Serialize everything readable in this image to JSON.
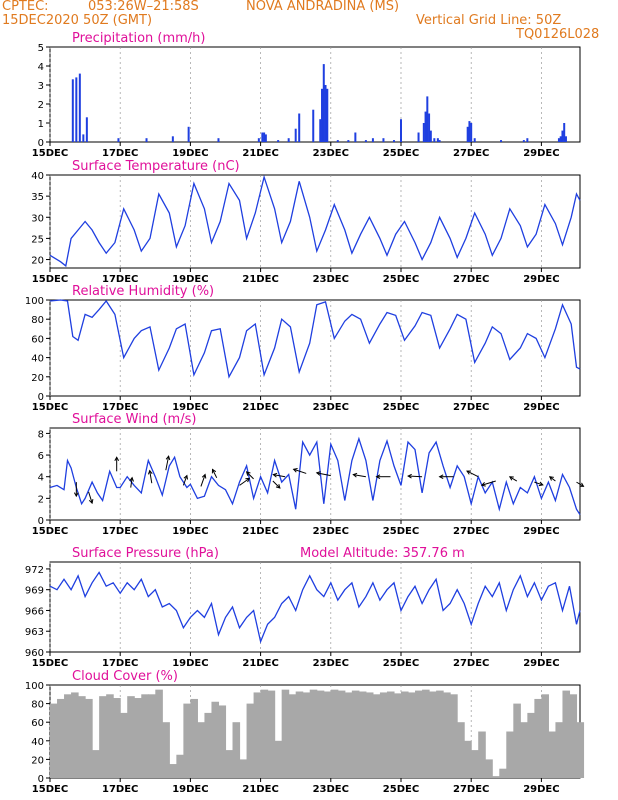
{
  "header": {
    "line1_left": "CPTEC:",
    "line1_coords": "053:26W–21:58S",
    "line1_station": "NOVA ANDRADINA (MS)",
    "line2_left": "15DEC2020 50Z (GMT)",
    "line2_right": "Vertical Grid Line: 50Z",
    "line3_right": "TQ0126L028",
    "model_altitude": "Model Altitude: 357.76 m"
  },
  "colors": {
    "header": "#e07a1f",
    "panel_title": "#e0109a",
    "series": "#1f3fe0",
    "cloud": "#a8a8a8",
    "wind_arrow": "#000000"
  },
  "x_ticks": [
    "15DEC",
    "17DEC",
    "19DEC",
    "21DEC",
    "23DEC",
    "25DEC",
    "27DEC",
    "29DEC"
  ],
  "x_tick_days": [
    15,
    17,
    19,
    21,
    23,
    25,
    27,
    29
  ],
  "x_range_days": [
    15,
    30.1
  ],
  "chart_data": [
    {
      "type": "bar",
      "title": "Precipitation (mm/h)",
      "ylim": [
        0,
        5
      ],
      "yticks": [
        0,
        1,
        2,
        3,
        4,
        5
      ],
      "series": [
        {
          "x": [
            15.65,
            15.75,
            15.85,
            15.95,
            16.05,
            16.95,
            17.75,
            18.5,
            18.95,
            19.8,
            20.95,
            21.05,
            21.1,
            21.15,
            21.5,
            21.8,
            22.0,
            22.1,
            22.5,
            22.7,
            22.75,
            22.8,
            22.85,
            22.9,
            23.2,
            23.5,
            23.7,
            24.0,
            24.2,
            24.5,
            24.8,
            25.0,
            25.5,
            25.65,
            25.7,
            25.75,
            25.8,
            25.85,
            25.95,
            26.05,
            26.1,
            26.9,
            26.95,
            27.0,
            27.1,
            27.85,
            28.5,
            28.6,
            29.5,
            29.55,
            29.6,
            29.65,
            29.7
          ],
          "values": [
            3.3,
            3.4,
            3.6,
            0.4,
            1.3,
            0.2,
            0.2,
            0.3,
            0.8,
            0.2,
            0.2,
            0.5,
            0.5,
            0.4,
            0.1,
            0.2,
            0.7,
            1.5,
            1.7,
            1.2,
            2.8,
            4.1,
            3.0,
            2.8,
            0.1,
            0.1,
            0.5,
            0.1,
            0.2,
            0.2,
            0.1,
            1.2,
            0.5,
            1.0,
            1.6,
            2.4,
            1.5,
            0.6,
            0.2,
            0.2,
            0.1,
            0.8,
            1.1,
            1.0,
            0.2,
            0.1,
            0.1,
            0.2,
            0.2,
            0.3,
            0.6,
            1.0,
            0.3
          ]
        }
      ]
    },
    {
      "type": "line",
      "title": "Surface Temperature (nC)",
      "ylim": [
        18,
        40
      ],
      "yticks": [
        20,
        25,
        30,
        35,
        40
      ],
      "series": [
        {
          "x": [
            15.0,
            15.3,
            15.45,
            15.6,
            15.8,
            16.0,
            16.2,
            16.4,
            16.6,
            16.85,
            17.1,
            17.4,
            17.6,
            17.85,
            18.1,
            18.4,
            18.6,
            18.85,
            19.1,
            19.4,
            19.6,
            19.85,
            20.1,
            20.4,
            20.6,
            20.85,
            21.1,
            21.4,
            21.6,
            21.85,
            22.1,
            22.4,
            22.6,
            22.85,
            23.1,
            23.4,
            23.6,
            23.85,
            24.1,
            24.4,
            24.6,
            24.85,
            25.1,
            25.4,
            25.6,
            25.85,
            26.1,
            26.4,
            26.6,
            26.85,
            27.1,
            27.4,
            27.6,
            27.85,
            28.1,
            28.4,
            28.6,
            28.85,
            29.1,
            29.4,
            29.6,
            29.85,
            30.0,
            30.1
          ],
          "values": [
            21,
            19.5,
            18.5,
            25,
            27,
            29,
            27,
            24,
            21.5,
            24,
            32,
            27,
            22,
            25,
            35.5,
            31,
            23,
            28,
            38,
            32,
            24,
            29,
            38,
            34,
            25,
            31,
            39.5,
            32,
            24,
            29,
            38.5,
            30,
            22,
            27,
            33,
            27,
            21.5,
            26,
            30,
            25,
            21,
            26,
            29,
            24,
            20,
            24,
            30,
            25,
            20.5,
            25,
            31,
            26,
            21,
            25,
            32,
            28,
            23,
            26,
            33,
            28.5,
            23.5,
            30,
            35.5,
            34
          ]
        }
      ]
    },
    {
      "type": "line",
      "title": "Relative Humidity (%)",
      "ylim": [
        0,
        100
      ],
      "yticks": [
        0,
        20,
        40,
        60,
        80,
        100
      ],
      "series": [
        {
          "x": [
            15.0,
            15.3,
            15.5,
            15.65,
            15.8,
            16.0,
            16.2,
            16.4,
            16.6,
            16.85,
            17.1,
            17.4,
            17.6,
            17.85,
            18.1,
            18.4,
            18.6,
            18.85,
            19.1,
            19.4,
            19.6,
            19.85,
            20.1,
            20.4,
            20.6,
            20.85,
            21.1,
            21.4,
            21.6,
            21.85,
            22.1,
            22.4,
            22.6,
            22.85,
            23.1,
            23.4,
            23.6,
            23.85,
            24.1,
            24.4,
            24.6,
            24.85,
            25.1,
            25.4,
            25.6,
            25.85,
            26.1,
            26.4,
            26.6,
            26.85,
            27.1,
            27.4,
            27.6,
            27.85,
            28.1,
            28.4,
            28.6,
            28.85,
            29.1,
            29.4,
            29.6,
            29.85,
            30.0,
            30.1
          ],
          "values": [
            99,
            100,
            99,
            62,
            58,
            85,
            82,
            90,
            99,
            85,
            40,
            60,
            68,
            72,
            27,
            50,
            70,
            75,
            22,
            45,
            68,
            70,
            20,
            40,
            68,
            75,
            22,
            50,
            80,
            72,
            25,
            55,
            95,
            98,
            60,
            78,
            85,
            80,
            55,
            75,
            87,
            84,
            58,
            73,
            87,
            84,
            50,
            70,
            85,
            80,
            35,
            55,
            72,
            65,
            38,
            50,
            65,
            60,
            40,
            70,
            95,
            75,
            30,
            28
          ]
        }
      ]
    },
    {
      "type": "line",
      "title": "Surface Wind (m/s)",
      "ylim": [
        0,
        8.5
      ],
      "yticks": [
        0,
        2,
        4,
        6,
        8
      ],
      "series": [
        {
          "x": [
            15.0,
            15.2,
            15.4,
            15.5,
            15.6,
            15.75,
            15.9,
            16.0,
            16.2,
            16.35,
            16.5,
            16.7,
            16.9,
            17.0,
            17.2,
            17.4,
            17.6,
            17.8,
            18.0,
            18.2,
            18.4,
            18.55,
            18.7,
            18.9,
            19.0,
            19.2,
            19.4,
            19.6,
            19.8,
            20.0,
            20.2,
            20.4,
            20.6,
            20.8,
            21.0,
            21.2,
            21.4,
            21.6,
            21.8,
            22.0,
            22.2,
            22.4,
            22.6,
            22.8,
            23.0,
            23.2,
            23.4,
            23.6,
            23.8,
            24.0,
            24.2,
            24.4,
            24.6,
            24.8,
            25.0,
            25.2,
            25.4,
            25.6,
            25.8,
            26.0,
            26.2,
            26.4,
            26.6,
            26.8,
            27.0,
            27.2,
            27.4,
            27.6,
            27.8,
            28.0,
            28.2,
            28.4,
            28.6,
            28.8,
            29.0,
            29.2,
            29.4,
            29.6,
            29.8,
            30.0,
            30.1
          ],
          "values": [
            3,
            3.2,
            2.8,
            5.5,
            4.8,
            3,
            1.5,
            2,
            3.5,
            2.5,
            1.8,
            4.5,
            3,
            3,
            4,
            3.2,
            2.5,
            5.5,
            4,
            2.3,
            5,
            5.8,
            4,
            3,
            3.3,
            2,
            2.2,
            4,
            3.2,
            2.8,
            1.5,
            3.5,
            5,
            2,
            4,
            2.5,
            5.5,
            3.5,
            4.2,
            1,
            7.2,
            6,
            7.2,
            1.5,
            7,
            5.5,
            1.8,
            5.5,
            7.5,
            5.5,
            1.8,
            5.5,
            7.3,
            5,
            3.2,
            7.2,
            6.5,
            2.5,
            6.2,
            7.2,
            5,
            3,
            5,
            4,
            1.5,
            4,
            2.5,
            3.5,
            1,
            3.5,
            1.5,
            3,
            2.5,
            4,
            2,
            3.5,
            1.8,
            4.2,
            3,
            1,
            0.5
          ]
        }
      ],
      "wind_vectors": [
        {
          "x": 15.75,
          "y": 3.5,
          "dx": 0,
          "dy": -1
        },
        {
          "x": 16.1,
          "y": 2.6,
          "dx": 0.25,
          "dy": -0.8
        },
        {
          "x": 16.9,
          "y": 4.5,
          "dx": 0,
          "dy": 1
        },
        {
          "x": 17.3,
          "y": 3.0,
          "dx": 0.1,
          "dy": 0.7
        },
        {
          "x": 17.9,
          "y": 3.4,
          "dx": -0.15,
          "dy": 0.9
        },
        {
          "x": 18.3,
          "y": 4.6,
          "dx": 0.2,
          "dy": 1
        },
        {
          "x": 18.8,
          "y": 3.2,
          "dx": 0.25,
          "dy": 0.7
        },
        {
          "x": 19.3,
          "y": 3.1,
          "dx": 0.3,
          "dy": 0.85
        },
        {
          "x": 19.75,
          "y": 3.9,
          "dx": -0.3,
          "dy": 0.6
        },
        {
          "x": 20.4,
          "y": 3.2,
          "dx": 0.7,
          "dy": 0.5
        },
        {
          "x": 20.8,
          "y": 3.8,
          "dx": -0.5,
          "dy": 0.5
        },
        {
          "x": 21.35,
          "y": 3.6,
          "dx": 0.5,
          "dy": -0.5
        },
        {
          "x": 21.7,
          "y": 4.0,
          "dx": -0.85,
          "dy": 0.15
        },
        {
          "x": 22.3,
          "y": 4.3,
          "dx": -0.9,
          "dy": 0.3
        },
        {
          "x": 23.0,
          "y": 4.1,
          "dx": -1,
          "dy": 0.2
        },
        {
          "x": 24.0,
          "y": 4.0,
          "dx": -0.9,
          "dy": 0.15
        },
        {
          "x": 24.7,
          "y": 4.0,
          "dx": -1,
          "dy": 0
        },
        {
          "x": 25.6,
          "y": 4.0,
          "dx": -1,
          "dy": 0.05
        },
        {
          "x": 26.5,
          "y": 4.0,
          "dx": -1,
          "dy": 0
        },
        {
          "x": 27.2,
          "y": 4.0,
          "dx": -0.8,
          "dy": 0.4
        },
        {
          "x": 27.7,
          "y": 3.6,
          "dx": -1,
          "dy": -0.3
        },
        {
          "x": 28.3,
          "y": 3.6,
          "dx": -0.5,
          "dy": 0.3
        },
        {
          "x": 28.8,
          "y": 3.5,
          "dx": 0.6,
          "dy": -0.2
        },
        {
          "x": 29.4,
          "y": 3.6,
          "dx": -0.4,
          "dy": 0.3
        },
        {
          "x": 30.0,
          "y": 3.5,
          "dx": 0.5,
          "dy": -0.3
        }
      ]
    },
    {
      "type": "line",
      "title": "Surface Pressure (hPa)",
      "ylim": [
        960,
        973
      ],
      "yticks": [
        960,
        963,
        966,
        969,
        972
      ],
      "series": [
        {
          "x": [
            15.0,
            15.2,
            15.4,
            15.6,
            15.8,
            16.0,
            16.2,
            16.4,
            16.6,
            16.8,
            17.0,
            17.2,
            17.4,
            17.6,
            17.8,
            18.0,
            18.2,
            18.4,
            18.6,
            18.8,
            19.0,
            19.2,
            19.4,
            19.6,
            19.8,
            20.0,
            20.2,
            20.4,
            20.6,
            20.8,
            21.0,
            21.2,
            21.4,
            21.6,
            21.8,
            22.0,
            22.2,
            22.4,
            22.6,
            22.8,
            23.0,
            23.2,
            23.4,
            23.6,
            23.8,
            24.0,
            24.2,
            24.4,
            24.6,
            24.8,
            25.0,
            25.2,
            25.4,
            25.6,
            25.8,
            26.0,
            26.2,
            26.4,
            26.6,
            26.8,
            27.0,
            27.2,
            27.4,
            27.6,
            27.8,
            28.0,
            28.2,
            28.4,
            28.6,
            28.8,
            29.0,
            29.2,
            29.4,
            29.6,
            29.8,
            30.0,
            30.1
          ],
          "values": [
            969.5,
            969,
            970.5,
            969,
            971,
            968,
            970,
            971.5,
            969.5,
            970,
            968.5,
            970,
            969,
            970.5,
            968,
            969,
            966.5,
            967,
            966,
            963.5,
            965,
            966,
            965,
            967,
            962.5,
            965,
            966.5,
            963.5,
            965,
            966,
            961.5,
            964,
            965,
            967,
            968,
            966,
            969,
            971,
            969,
            968,
            970,
            967.5,
            969,
            970,
            966.5,
            968,
            970,
            967.5,
            969,
            970,
            966,
            968,
            969.5,
            967,
            969,
            970.5,
            966,
            967,
            969,
            967,
            964,
            967,
            969.5,
            968,
            970,
            966,
            969,
            971,
            968,
            970,
            967.5,
            969.5,
            970,
            966,
            969.5,
            964,
            966
          ]
        }
      ]
    },
    {
      "type": "bar",
      "title": "Cloud Cover (%)",
      "ylim": [
        0,
        100
      ],
      "yticks": [
        0,
        20,
        40,
        60,
        80,
        100
      ],
      "series": [
        {
          "x": [
            15.0,
            15.2,
            15.4,
            15.6,
            15.8,
            16.0,
            16.2,
            16.4,
            16.6,
            16.8,
            17.0,
            17.2,
            17.4,
            17.6,
            17.8,
            18.0,
            18.2,
            18.4,
            18.6,
            18.8,
            19.0,
            19.2,
            19.4,
            19.6,
            19.8,
            20.0,
            20.2,
            20.4,
            20.6,
            20.8,
            21.0,
            21.2,
            21.4,
            21.6,
            21.8,
            22.0,
            22.2,
            22.4,
            22.6,
            22.8,
            23.0,
            23.2,
            23.4,
            23.6,
            23.8,
            24.0,
            24.2,
            24.4,
            24.6,
            24.8,
            25.0,
            25.2,
            25.4,
            25.6,
            25.8,
            26.0,
            26.2,
            26.4,
            26.6,
            26.8,
            27.0,
            27.2,
            27.4,
            27.6,
            27.8,
            28.0,
            28.2,
            28.4,
            28.6,
            28.8,
            29.0,
            29.2,
            29.4,
            29.6,
            29.8,
            30.0
          ],
          "values": [
            80,
            85,
            90,
            92,
            88,
            85,
            30,
            88,
            90,
            86,
            70,
            88,
            86,
            90,
            90,
            95,
            60,
            15,
            25,
            80,
            85,
            60,
            70,
            82,
            78,
            30,
            60,
            20,
            80,
            92,
            95,
            94,
            40,
            95,
            90,
            93,
            92,
            95,
            94,
            93,
            95,
            94,
            92,
            94,
            93,
            92,
            90,
            92,
            93,
            91,
            93,
            92,
            94,
            95,
            93,
            94,
            92,
            90,
            60,
            40,
            30,
            50,
            20,
            2,
            10,
            50,
            80,
            60,
            70,
            85,
            90,
            50,
            60,
            94,
            90,
            60
          ]
        }
      ]
    }
  ]
}
